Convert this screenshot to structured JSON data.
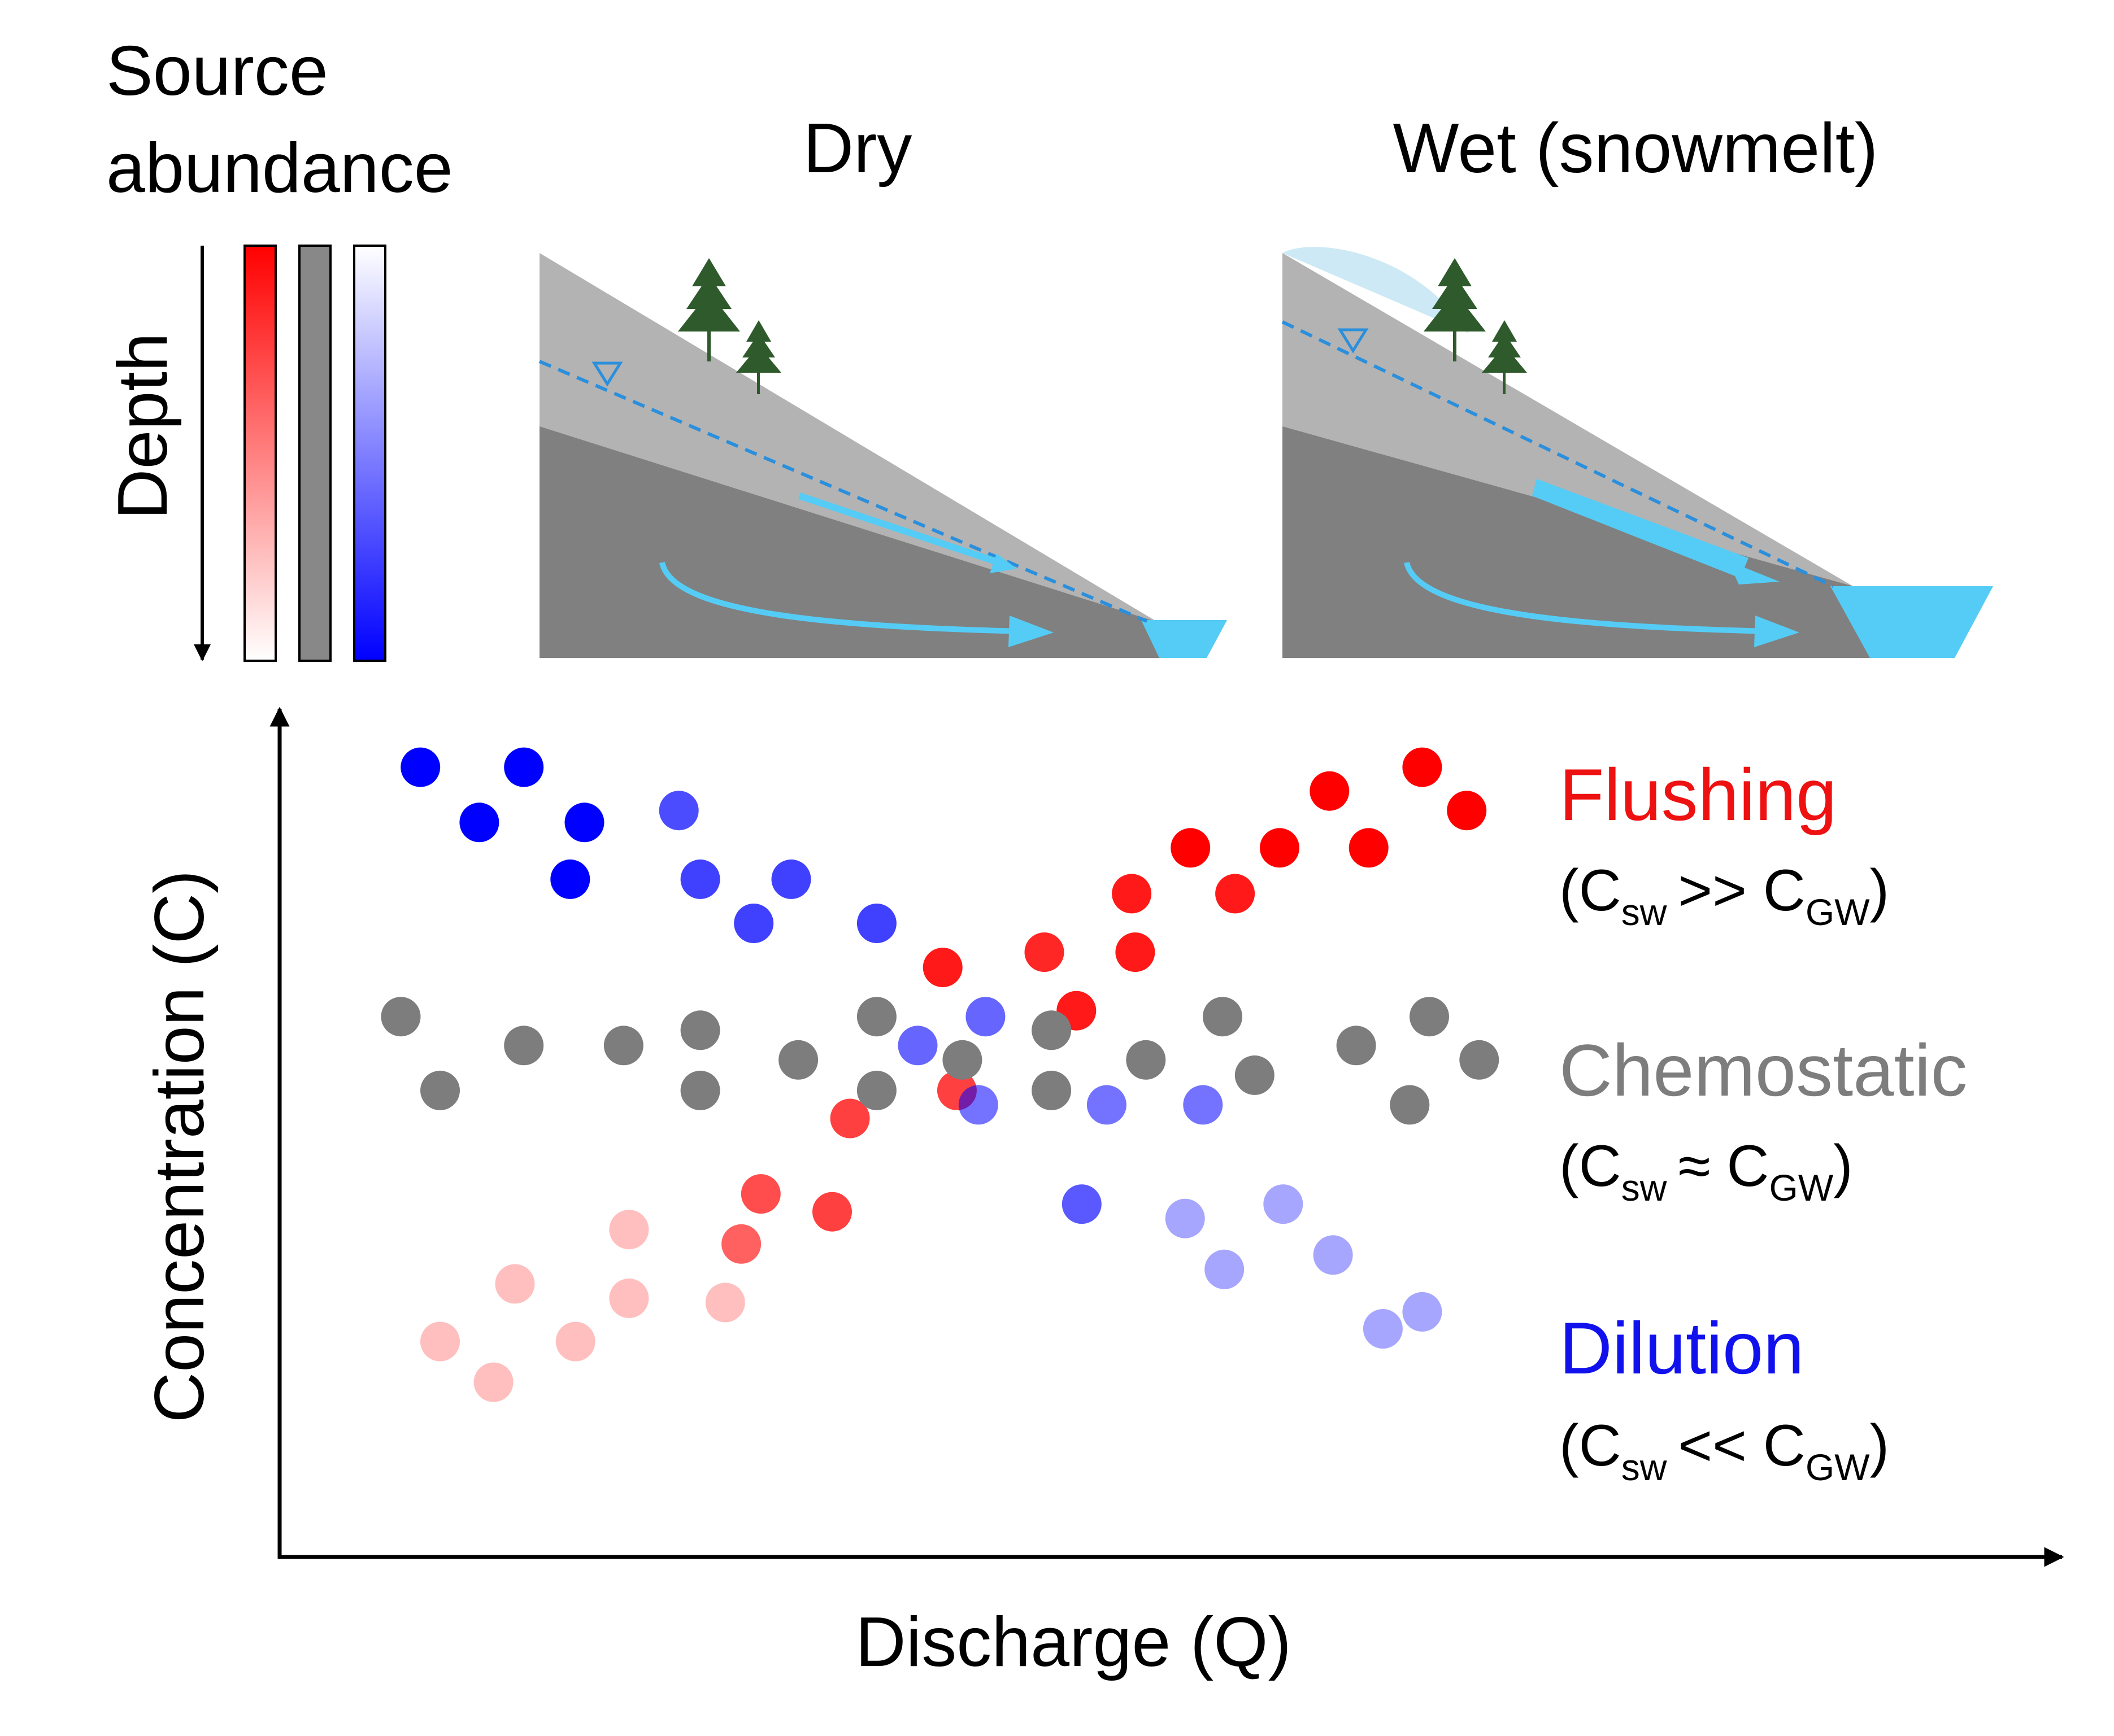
{
  "source_panel": {
    "title_line1": "Source",
    "title_line2": "abundance",
    "depth_label": "Depth",
    "bars": [
      {
        "name": "red-gradient",
        "top_color": "#ff0000",
        "bottom_color": "#ffffff"
      },
      {
        "name": "gray",
        "color": "#888888"
      },
      {
        "name": "blue-gradient",
        "top_color": "#ffffff",
        "bottom_color": "#0000ff"
      }
    ]
  },
  "panels": {
    "dry": {
      "title": "Dry"
    },
    "wet": {
      "title": "Wet (snowmelt)"
    }
  },
  "colors": {
    "water": "#55ccf5",
    "flow_arrow": "#55ccf5",
    "water_table": "#2a8fdc",
    "soil_upper": "#b3b3b3",
    "soil_lower": "#808080",
    "snow": "#cde9f5",
    "tree": "#2e5a2c",
    "flushing": "#ee1111",
    "chemostatic": "#7d7d7d",
    "dilution": "#1111ee"
  },
  "icons": [
    "water-table-triangle-icon",
    "tree-icon"
  ],
  "chart": {
    "x_label": "Discharge (Q)",
    "y_label": "Concentration (C)",
    "legend": [
      {
        "name": "Flushing",
        "sub_pre": "(C",
        "sub1": "sw",
        "relation": ">> C",
        "sub2": "GW",
        "sub_post": ")",
        "color": "#ee1111"
      },
      {
        "name": "Chemostatic",
        "sub_pre": "(C",
        "sub1": "sw",
        "relation": "≈ C",
        "sub2": "GW",
        "sub_post": ")",
        "color": "#7d7d7d"
      },
      {
        "name": "Dilution",
        "sub_pre": "(C",
        "sub1": "sw",
        "relation": "<< C",
        "sub2": "GW",
        "sub_post": ")",
        "color": "#1111ee"
      }
    ]
  },
  "chart_data": {
    "type": "scatter",
    "xlabel": "Discharge (Q)",
    "ylabel": "Concentration (C)",
    "xlim": [
      0,
      100
    ],
    "ylim": [
      0,
      100
    ],
    "grid": false,
    "legend_position": "right",
    "series": [
      {
        "name": "Flushing",
        "color": "#ff0000",
        "points": [
          {
            "x": 9.0,
            "y": 25.4,
            "a": 0.25
          },
          {
            "x": 12.0,
            "y": 20.6,
            "a": 0.25
          },
          {
            "x": 13.2,
            "y": 32.2,
            "a": 0.25
          },
          {
            "x": 16.6,
            "y": 25.4,
            "a": 0.25
          },
          {
            "x": 19.6,
            "y": 30.5,
            "a": 0.25
          },
          {
            "x": 19.6,
            "y": 38.6,
            "a": 0.25
          },
          {
            "x": 25.0,
            "y": 30.0,
            "a": 0.25
          },
          {
            "x": 25.9,
            "y": 36.9,
            "a": 0.62
          },
          {
            "x": 27.0,
            "y": 42.8,
            "a": 0.7
          },
          {
            "x": 31.0,
            "y": 40.7,
            "a": 0.75
          },
          {
            "x": 32.0,
            "y": 51.7,
            "a": 0.75
          },
          {
            "x": 38.0,
            "y": 55.0,
            "a": 0.75
          },
          {
            "x": 37.2,
            "y": 69.5,
            "a": 0.9
          },
          {
            "x": 42.9,
            "y": 71.3,
            "a": 0.85
          },
          {
            "x": 44.7,
            "y": 64.4,
            "a": 0.9
          },
          {
            "x": 47.8,
            "y": 78.2,
            "a": 0.9
          },
          {
            "x": 48.0,
            "y": 71.3,
            "a": 0.9
          },
          {
            "x": 51.1,
            "y": 83.6,
            "a": 1.0
          },
          {
            "x": 53.6,
            "y": 78.2,
            "a": 0.9
          },
          {
            "x": 56.1,
            "y": 83.6,
            "a": 1.0
          },
          {
            "x": 58.9,
            "y": 90.3,
            "a": 1.0
          },
          {
            "x": 61.1,
            "y": 83.6,
            "a": 1.0
          },
          {
            "x": 64.1,
            "y": 93.1,
            "a": 1.0
          },
          {
            "x": 66.6,
            "y": 88.0,
            "a": 1.0
          }
        ]
      },
      {
        "name": "Chemostatic",
        "color": "#7d7d7d",
        "points": [
          {
            "x": 6.8,
            "y": 63.7
          },
          {
            "x": 9.0,
            "y": 55.0
          },
          {
            "x": 13.7,
            "y": 60.3
          },
          {
            "x": 19.3,
            "y": 60.3
          },
          {
            "x": 23.6,
            "y": 62.1
          },
          {
            "x": 23.6,
            "y": 55.0
          },
          {
            "x": 29.1,
            "y": 58.6
          },
          {
            "x": 33.5,
            "y": 63.7
          },
          {
            "x": 33.5,
            "y": 55.0
          },
          {
            "x": 38.3,
            "y": 58.6
          },
          {
            "x": 43.3,
            "y": 62.1
          },
          {
            "x": 43.3,
            "y": 55.0
          },
          {
            "x": 48.6,
            "y": 58.6
          },
          {
            "x": 52.9,
            "y": 63.7
          },
          {
            "x": 54.7,
            "y": 56.8
          },
          {
            "x": 60.4,
            "y": 60.3
          },
          {
            "x": 64.5,
            "y": 63.7
          },
          {
            "x": 63.4,
            "y": 53.3
          },
          {
            "x": 67.3,
            "y": 58.6
          }
        ]
      },
      {
        "name": "Dilution",
        "color": "#0000ff",
        "points": [
          {
            "x": 7.9,
            "y": 93.1,
            "a": 1.0
          },
          {
            "x": 13.7,
            "y": 93.1,
            "a": 1.0
          },
          {
            "x": 11.2,
            "y": 86.6,
            "a": 1.0
          },
          {
            "x": 17.1,
            "y": 86.6,
            "a": 1.0
          },
          {
            "x": 16.3,
            "y": 79.9,
            "a": 1.0
          },
          {
            "x": 22.4,
            "y": 88.0,
            "a": 0.7
          },
          {
            "x": 23.6,
            "y": 79.9,
            "a": 0.75
          },
          {
            "x": 28.7,
            "y": 79.9,
            "a": 0.75
          },
          {
            "x": 26.6,
            "y": 74.7,
            "a": 0.75
          },
          {
            "x": 33.5,
            "y": 74.7,
            "a": 0.75
          },
          {
            "x": 39.6,
            "y": 63.7,
            "a": 0.6
          },
          {
            "x": 35.8,
            "y": 60.3,
            "a": 0.6
          },
          {
            "x": 39.2,
            "y": 53.3,
            "a": 0.55
          },
          {
            "x": 46.4,
            "y": 53.3,
            "a": 0.55
          },
          {
            "x": 51.8,
            "y": 53.3,
            "a": 0.55
          },
          {
            "x": 45.0,
            "y": 41.6,
            "a": 0.65
          },
          {
            "x": 50.8,
            "y": 39.9,
            "a": 0.35
          },
          {
            "x": 56.3,
            "y": 41.6,
            "a": 0.35
          },
          {
            "x": 53.0,
            "y": 33.9,
            "a": 0.35
          },
          {
            "x": 59.1,
            "y": 35.6,
            "a": 0.35
          },
          {
            "x": 61.9,
            "y": 26.9,
            "a": 0.35
          },
          {
            "x": 64.1,
            "y": 28.9,
            "a": 0.35
          }
        ]
      }
    ]
  }
}
